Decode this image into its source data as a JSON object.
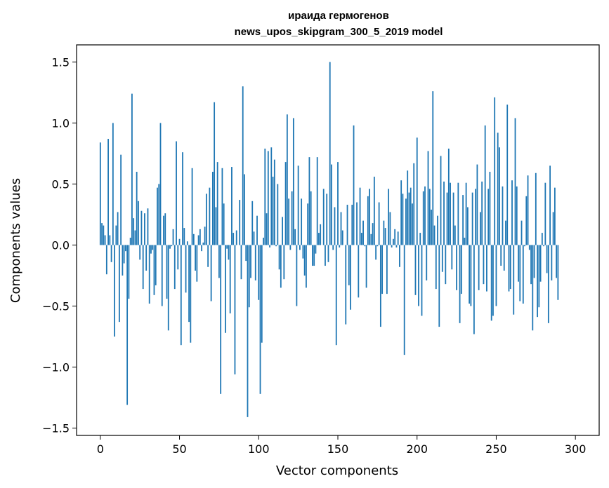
{
  "chart_data": {
    "type": "bar",
    "title": "ираида гермогенов",
    "subtitle": "news_upos_skipgram_300_5_2019 model",
    "xlabel": "Vector components",
    "ylabel": "Components values",
    "xlim": [
      -15,
      315
    ],
    "ylim": [
      -1.56,
      1.64
    ],
    "xticks": [
      0,
      50,
      100,
      150,
      200,
      250,
      300
    ],
    "xtick_labels": [
      "0",
      "50",
      "100",
      "150",
      "200",
      "250",
      "300"
    ],
    "yticks": [
      -1.5,
      -1.0,
      -0.5,
      0.0,
      0.5,
      1.0,
      1.5
    ],
    "ytick_labels": [
      "−1.5",
      "−1.0",
      "−0.5",
      "0.0",
      "0.5",
      "1.0",
      "1.5"
    ],
    "grid": false,
    "bar_color": "#1f77b4",
    "values": [
      0.84,
      0.18,
      0.16,
      0.08,
      -0.24,
      0.87,
      0.08,
      -0.14,
      1.0,
      -0.75,
      0.16,
      0.27,
      -0.63,
      0.74,
      -0.25,
      -0.15,
      -0.05,
      -1.31,
      -0.44,
      0.06,
      1.24,
      0.22,
      0.12,
      0.6,
      0.36,
      -0.12,
      0.28,
      -0.36,
      0.26,
      -0.21,
      0.3,
      -0.48,
      -0.07,
      -0.04,
      -0.41,
      -0.33,
      0.47,
      0.5,
      1.0,
      -0.5,
      0.24,
      0.26,
      -0.44,
      -0.7,
      -0.03,
      -0.01,
      0.13,
      -0.36,
      0.85,
      -0.2,
      0.05,
      -0.82,
      0.76,
      0.14,
      -0.39,
      0.03,
      -0.63,
      -0.8,
      0.63,
      0.09,
      -0.21,
      -0.3,
      0.08,
      0.13,
      -0.05,
      0.02,
      0.15,
      0.42,
      -0.18,
      0.47,
      -0.46,
      0.6,
      1.17,
      0.31,
      0.68,
      -0.27,
      -1.22,
      0.63,
      0.34,
      -0.72,
      -0.03,
      -0.12,
      -0.56,
      0.64,
      0.1,
      -1.06,
      0.12,
      0.0,
      0.37,
      -0.28,
      1.3,
      0.58,
      -0.13,
      -1.41,
      -0.51,
      -0.27,
      0.36,
      0.11,
      -0.29,
      0.24,
      -0.45,
      -1.22,
      -0.8,
      0.06,
      0.79,
      0.26,
      0.77,
      -0.02,
      0.8,
      0.56,
      0.7,
      -0.01,
      0.5,
      -0.2,
      -0.35,
      0.23,
      -0.28,
      0.68,
      1.07,
      0.38,
      -0.04,
      0.44,
      1.04,
      0.13,
      -0.5,
      0.65,
      -0.04,
      0.38,
      -0.11,
      -0.25,
      -0.35,
      0.34,
      0.72,
      0.44,
      -0.17,
      -0.17,
      -0.07,
      0.72,
      0.1,
      0.17,
      0.0,
      0.46,
      -0.17,
      0.42,
      -0.14,
      1.5,
      0.66,
      -0.04,
      0.31,
      -0.82,
      0.68,
      -0.02,
      0.27,
      0.12,
      0.0,
      -0.65,
      0.33,
      -0.33,
      -0.53,
      0.33,
      0.98,
      0.0,
      0.35,
      -0.43,
      0.47,
      0.1,
      0.2,
      -0.01,
      -0.35,
      0.4,
      0.46,
      0.09,
      0.18,
      0.56,
      -0.12,
      -0.01,
      0.35,
      -0.67,
      -0.4,
      0.2,
      0.14,
      -0.4,
      0.46,
      0.27,
      -0.02,
      0.05,
      0.13,
      -0.02,
      0.11,
      -0.18,
      0.53,
      0.42,
      -0.9,
      0.38,
      0.61,
      0.43,
      0.47,
      0.34,
      0.67,
      -0.41,
      0.88,
      -0.5,
      0.1,
      -0.58,
      0.44,
      0.48,
      -0.29,
      0.77,
      0.46,
      0.29,
      1.26,
      0.16,
      -0.36,
      0.24,
      -0.67,
      0.73,
      -0.22,
      0.52,
      -0.32,
      0.43,
      0.79,
      0.51,
      -0.2,
      0.43,
      0.16,
      -0.37,
      0.51,
      -0.64,
      -0.4,
      0.41,
      0.06,
      0.51,
      0.31,
      -0.48,
      -0.5,
      0.43,
      -0.73,
      0.46,
      0.66,
      -0.37,
      0.27,
      0.52,
      -0.32,
      0.98,
      -0.38,
      0.46,
      0.6,
      -0.62,
      -0.58,
      1.21,
      -0.5,
      0.92,
      0.8,
      -0.17,
      0.48,
      -0.21,
      0.2,
      1.15,
      -0.38,
      -0.36,
      0.53,
      -0.57,
      1.04,
      0.48,
      -0.3,
      -0.46,
      0.2,
      -0.48,
      -0.01,
      0.4,
      0.57,
      -0.04,
      -0.32,
      -0.7,
      -0.27,
      0.59,
      -0.59,
      -0.51,
      -0.3,
      0.1,
      -0.01,
      0.51,
      -0.23,
      -0.64,
      0.65,
      -0.29,
      0.27,
      0.47,
      -0.27,
      -0.45
    ]
  }
}
